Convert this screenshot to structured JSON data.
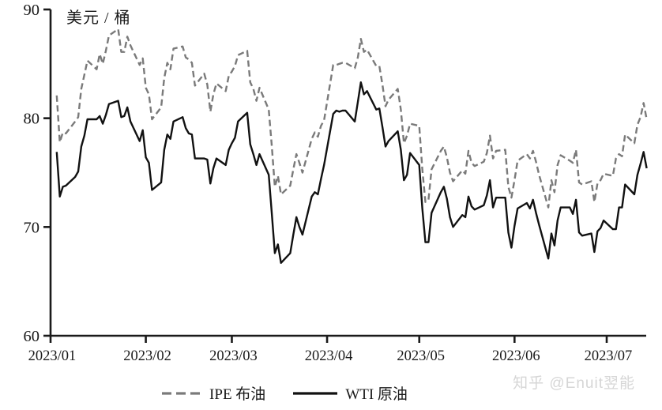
{
  "page": {
    "watermark": "知乎 @Enuit翌能"
  },
  "chart_data": {
    "type": "line",
    "title": "",
    "ylabel": "美元 / 桶",
    "xlabel": "",
    "ylim": [
      60,
      90
    ],
    "y_ticks": [
      60,
      70,
      80,
      90
    ],
    "x_ticks": [
      "2023/01",
      "2023/02",
      "2023/03",
      "2023/04",
      "2023/05",
      "2023/06",
      "2023/07"
    ],
    "grid": false,
    "legend_position": "bottom-center",
    "dates": [
      "01/03",
      "01/04",
      "01/05",
      "01/06",
      "01/09",
      "01/10",
      "01/11",
      "01/12",
      "01/13",
      "01/16",
      "01/17",
      "01/18",
      "01/19",
      "01/20",
      "01/23",
      "01/24",
      "01/25",
      "01/26",
      "01/27",
      "01/30",
      "01/31",
      "02/01",
      "02/02",
      "02/03",
      "02/06",
      "02/07",
      "02/08",
      "02/09",
      "02/10",
      "02/13",
      "02/14",
      "02/15",
      "02/16",
      "02/17",
      "02/20",
      "02/21",
      "02/22",
      "02/23",
      "02/24",
      "02/27",
      "02/28",
      "03/01",
      "03/02",
      "03/03",
      "03/06",
      "03/07",
      "03/08",
      "03/09",
      "03/10",
      "03/13",
      "03/14",
      "03/15",
      "03/16",
      "03/17",
      "03/20",
      "03/21",
      "03/22",
      "03/23",
      "03/24",
      "03/27",
      "03/28",
      "03/29",
      "03/30",
      "03/31",
      "04/03",
      "04/04",
      "04/05",
      "04/06",
      "04/07",
      "04/10",
      "04/11",
      "04/12",
      "04/13",
      "04/14",
      "04/17",
      "04/18",
      "04/19",
      "04/20",
      "04/21",
      "04/24",
      "04/25",
      "04/26",
      "04/27",
      "04/28",
      "05/01",
      "05/02",
      "05/03",
      "05/04",
      "05/05",
      "05/08",
      "05/09",
      "05/10",
      "05/11",
      "05/12",
      "05/15",
      "05/16",
      "05/17",
      "05/18",
      "05/19",
      "05/22",
      "05/23",
      "05/24",
      "05/25",
      "05/26",
      "05/29",
      "05/30",
      "05/31",
      "06/01",
      "06/02",
      "06/05",
      "06/06",
      "06/07",
      "06/08",
      "06/09",
      "06/12",
      "06/13",
      "06/14",
      "06/15",
      "06/16",
      "06/19",
      "06/20",
      "06/21",
      "06/22",
      "06/23",
      "06/26",
      "06/27",
      "06/28",
      "06/29",
      "06/30",
      "07/03",
      "07/04",
      "07/05",
      "07/06",
      "07/07",
      "07/10",
      "07/11",
      "07/12",
      "07/13",
      "07/14"
    ],
    "series": [
      {
        "name": "IPE 布油",
        "style": "dashed",
        "color": "#7a7a7a",
        "values": [
          82.1,
          77.8,
          78.7,
          78.6,
          79.7,
          80.1,
          82.7,
          84.0,
          85.3,
          84.5,
          85.9,
          85.0,
          86.2,
          87.6,
          88.2,
          86.1,
          86.1,
          87.5,
          86.7,
          84.9,
          85.5,
          82.8,
          82.2,
          79.9,
          81.0,
          83.7,
          85.1,
          84.5,
          86.4,
          86.6,
          85.6,
          85.4,
          85.1,
          83.0,
          84.1,
          83.1,
          80.6,
          82.2,
          83.2,
          82.5,
          83.9,
          84.3,
          84.8,
          85.8,
          86.2,
          83.3,
          82.7,
          81.6,
          82.8,
          80.8,
          77.5,
          73.7,
          74.7,
          73.0,
          73.8,
          75.3,
          76.7,
          75.9,
          75.0,
          78.1,
          78.7,
          78.3,
          79.3,
          79.8,
          84.9,
          84.9,
          85.0,
          85.1,
          85.1,
          84.6,
          85.6,
          87.3,
          86.1,
          86.3,
          84.8,
          84.8,
          83.1,
          81.1,
          81.7,
          82.7,
          80.8,
          77.7,
          78.4,
          79.5,
          79.3,
          75.3,
          72.3,
          72.5,
          75.3,
          77.0,
          77.4,
          76.4,
          75.0,
          74.2,
          75.2,
          74.9,
          77.0,
          75.9,
          75.6,
          76.0,
          76.8,
          78.4,
          76.3,
          77.0,
          77.1,
          73.7,
          72.7,
          74.3,
          76.1,
          76.7,
          76.3,
          77.0,
          76.0,
          74.8,
          71.8,
          74.3,
          73.2,
          75.7,
          76.6,
          76.1,
          75.9,
          77.1,
          74.1,
          73.9,
          74.2,
          72.3,
          74.0,
          74.3,
          74.9,
          74.7,
          76.3,
          76.7,
          76.5,
          78.5,
          77.7,
          79.4,
          80.1,
          81.4,
          79.9
        ]
      },
      {
        "name": "WTI 原油",
        "style": "solid",
        "color": "#111111",
        "values": [
          76.9,
          72.8,
          73.7,
          73.8,
          74.6,
          75.1,
          77.4,
          78.4,
          79.9,
          79.9,
          80.2,
          79.5,
          80.3,
          81.3,
          81.6,
          80.1,
          80.2,
          81.0,
          79.7,
          77.9,
          78.9,
          76.4,
          75.9,
          73.4,
          74.1,
          77.1,
          78.5,
          78.1,
          79.7,
          80.1,
          79.1,
          78.6,
          78.5,
          76.3,
          76.3,
          76.2,
          74.0,
          75.4,
          76.3,
          75.7,
          77.1,
          77.7,
          78.2,
          79.7,
          80.5,
          77.6,
          76.7,
          75.7,
          76.7,
          74.8,
          71.3,
          67.6,
          68.4,
          66.7,
          67.6,
          69.3,
          70.9,
          70.0,
          69.3,
          72.8,
          73.2,
          73.0,
          74.4,
          75.7,
          80.4,
          80.7,
          80.6,
          80.7,
          80.7,
          79.7,
          81.5,
          83.3,
          82.2,
          82.5,
          80.8,
          80.9,
          79.2,
          77.4,
          77.9,
          78.8,
          77.1,
          74.3,
          74.8,
          76.8,
          75.7,
          71.7,
          68.6,
          68.6,
          71.3,
          73.2,
          73.7,
          72.6,
          70.9,
          70.0,
          71.1,
          70.9,
          72.8,
          71.9,
          71.6,
          72.0,
          72.9,
          74.3,
          71.8,
          72.7,
          72.7,
          69.5,
          68.1,
          70.1,
          71.7,
          72.2,
          71.7,
          72.5,
          71.3,
          70.2,
          67.1,
          69.4,
          68.3,
          70.6,
          71.8,
          71.8,
          71.2,
          72.5,
          69.5,
          69.2,
          69.4,
          67.7,
          69.6,
          69.9,
          70.6,
          69.8,
          69.8,
          71.8,
          71.8,
          73.9,
          73.0,
          74.8,
          75.8,
          76.9,
          75.4
        ]
      }
    ]
  }
}
